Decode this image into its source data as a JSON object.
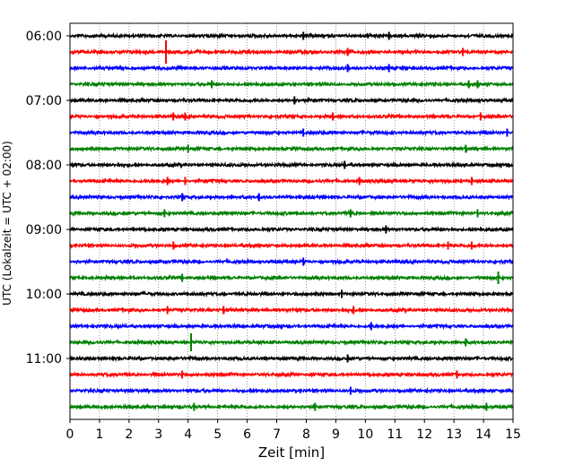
{
  "chart_data": {
    "type": "line",
    "title": "",
    "xlabel": "Zeit  [min]",
    "ylabel": "UTC (Lokalzeit = UTC + 02:00)",
    "xlim": [
      0,
      15
    ],
    "xticks": [
      "0",
      "1",
      "2",
      "3",
      "4",
      "5",
      "6",
      "7",
      "8",
      "9",
      "10",
      "11",
      "12",
      "13",
      "14",
      "15"
    ],
    "y_tick_labels": [
      {
        "row": 0,
        "label": "06:00"
      },
      {
        "row": 4,
        "label": "07:00"
      },
      {
        "row": 8,
        "label": "08:00"
      },
      {
        "row": 12,
        "label": "09:00"
      },
      {
        "row": 16,
        "label": "10:00"
      },
      {
        "row": 20,
        "label": "11:00"
      }
    ],
    "grid": "vertical-dotted",
    "row_minutes": 15,
    "series_colors": [
      "#000000",
      "#ff0000",
      "#0000ff",
      "#008000"
    ],
    "traces": [
      {
        "start": "06:00",
        "color": "#000000",
        "events": [
          7.9,
          10.8
        ]
      },
      {
        "start": "06:15",
        "color": "#ff0000",
        "events": [
          3.25,
          9.4,
          13.3
        ]
      },
      {
        "start": "06:30",
        "color": "#0000ff",
        "events": [
          9.4,
          10.8
        ]
      },
      {
        "start": "06:45",
        "color": "#008000",
        "events": [
          4.8,
          13.5,
          13.8
        ]
      },
      {
        "start": "07:00",
        "color": "#000000",
        "events": [
          7.6
        ]
      },
      {
        "start": "07:15",
        "color": "#ff0000",
        "events": [
          3.5,
          3.9,
          8.9,
          13.9
        ]
      },
      {
        "start": "07:30",
        "color": "#0000ff",
        "events": [
          7.9,
          14.8
        ]
      },
      {
        "start": "07:45",
        "color": "#008000",
        "events": [
          4.0,
          13.4
        ]
      },
      {
        "start": "08:00",
        "color": "#000000",
        "events": [
          9.3
        ]
      },
      {
        "start": "08:15",
        "color": "#ff0000",
        "events": [
          3.3,
          3.9,
          9.8,
          13.6
        ]
      },
      {
        "start": "08:30",
        "color": "#0000ff",
        "events": [
          3.8,
          6.4
        ]
      },
      {
        "start": "08:45",
        "color": "#008000",
        "events": [
          3.2,
          9.5,
          13.8
        ]
      },
      {
        "start": "09:00",
        "color": "#000000",
        "events": [
          10.7
        ]
      },
      {
        "start": "09:15",
        "color": "#ff0000",
        "events": [
          3.5,
          12.8,
          13.6
        ]
      },
      {
        "start": "09:30",
        "color": "#0000ff",
        "events": [
          7.9
        ]
      },
      {
        "start": "09:45",
        "color": "#008000",
        "events": [
          3.8,
          14.5
        ]
      },
      {
        "start": "10:00",
        "color": "#000000",
        "events": [
          9.2
        ]
      },
      {
        "start": "10:15",
        "color": "#ff0000",
        "events": [
          3.3,
          5.2,
          9.6
        ]
      },
      {
        "start": "10:30",
        "color": "#0000ff",
        "events": [
          10.2
        ]
      },
      {
        "start": "10:45",
        "color": "#008000",
        "events": [
          4.1,
          13.4
        ]
      },
      {
        "start": "11:00",
        "color": "#000000",
        "events": [
          9.4
        ]
      },
      {
        "start": "11:15",
        "color": "#ff0000",
        "events": [
          3.8,
          13.1
        ]
      },
      {
        "start": "11:30",
        "color": "#0000ff",
        "events": [
          9.5
        ]
      },
      {
        "start": "11:45",
        "color": "#008000",
        "events": [
          4.2,
          8.3,
          14.1
        ]
      }
    ]
  }
}
